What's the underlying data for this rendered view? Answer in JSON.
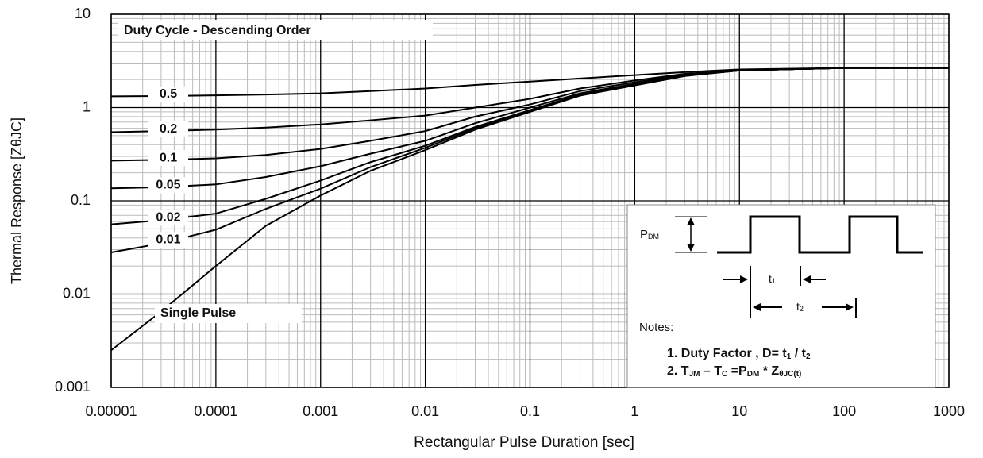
{
  "chart_data": {
    "type": "line",
    "title": "Duty Cycle - Descending Order",
    "x_label": "Rectangular Pulse Duration [sec]",
    "y_label": "Thermal Response  [ZθJC]",
    "log_x": true,
    "log_y": true,
    "grid": true,
    "x": [
      1e-05,
      3e-05,
      0.0001,
      0.0003,
      0.001,
      0.003,
      0.01,
      0.03,
      0.1,
      0.3,
      1,
      3,
      10,
      100,
      1000
    ],
    "series": [
      {
        "name": "0.5",
        "color": "#000000",
        "values": [
          1.32,
          1.33,
          1.35,
          1.38,
          1.42,
          1.5,
          1.6,
          1.75,
          1.9,
          2.05,
          2.23,
          2.4,
          2.56,
          2.66,
          2.66
        ]
      },
      {
        "name": "0.2",
        "color": "#000000",
        "values": [
          0.545,
          0.56,
          0.58,
          0.61,
          0.66,
          0.73,
          0.82,
          1.0,
          1.24,
          1.6,
          1.95,
          2.3,
          2.5,
          2.66,
          2.66
        ]
      },
      {
        "name": "0.1",
        "color": "#000000",
        "values": [
          0.27,
          0.275,
          0.285,
          0.31,
          0.36,
          0.44,
          0.56,
          0.8,
          1.08,
          1.5,
          1.87,
          2.25,
          2.5,
          2.66,
          2.66
        ]
      },
      {
        "name": "0.05",
        "color": "#000000",
        "values": [
          0.136,
          0.14,
          0.15,
          0.18,
          0.235,
          0.32,
          0.44,
          0.68,
          1.0,
          1.42,
          1.8,
          2.2,
          2.5,
          2.66,
          2.66
        ]
      },
      {
        "name": "0.02",
        "color": "#000000",
        "values": [
          0.056,
          0.062,
          0.073,
          0.105,
          0.165,
          0.26,
          0.39,
          0.62,
          0.94,
          1.38,
          1.76,
          2.2,
          2.5,
          2.66,
          2.66
        ]
      },
      {
        "name": "0.01",
        "color": "#000000",
        "values": [
          0.028,
          0.035,
          0.049,
          0.082,
          0.135,
          0.23,
          0.37,
          0.6,
          0.92,
          1.36,
          1.73,
          2.18,
          2.5,
          2.66,
          2.66
        ]
      },
      {
        "name": "Single Pulse",
        "color": "#000000",
        "values": [
          0.0025,
          0.0065,
          0.02,
          0.054,
          0.114,
          0.21,
          0.35,
          0.58,
          0.9,
          1.34,
          1.73,
          2.18,
          2.5,
          2.66,
          2.66
        ]
      }
    ],
    "xlim": [
      1e-05,
      1000
    ],
    "ylim": [
      0.001,
      10
    ],
    "xticks": [
      1e-05,
      0.0001,
      0.001,
      0.01,
      0.1,
      1,
      10,
      100,
      1000
    ],
    "yticks": [
      0.001,
      0.01,
      0.1,
      1,
      10
    ],
    "inset": {
      "pdm": [
        "P",
        "DM"
      ],
      "t1": [
        "t",
        "1"
      ],
      "t2": [
        "t",
        "2"
      ],
      "notes_title": "Notes:",
      "note1": [
        "1. Duty Factor ,   D= t",
        "1",
        " / t",
        "2"
      ],
      "note2": [
        "2. T",
        "JM",
        " – T",
        "C",
        "  =P",
        "DM",
        " * Z",
        "θJC(t)"
      ]
    }
  }
}
